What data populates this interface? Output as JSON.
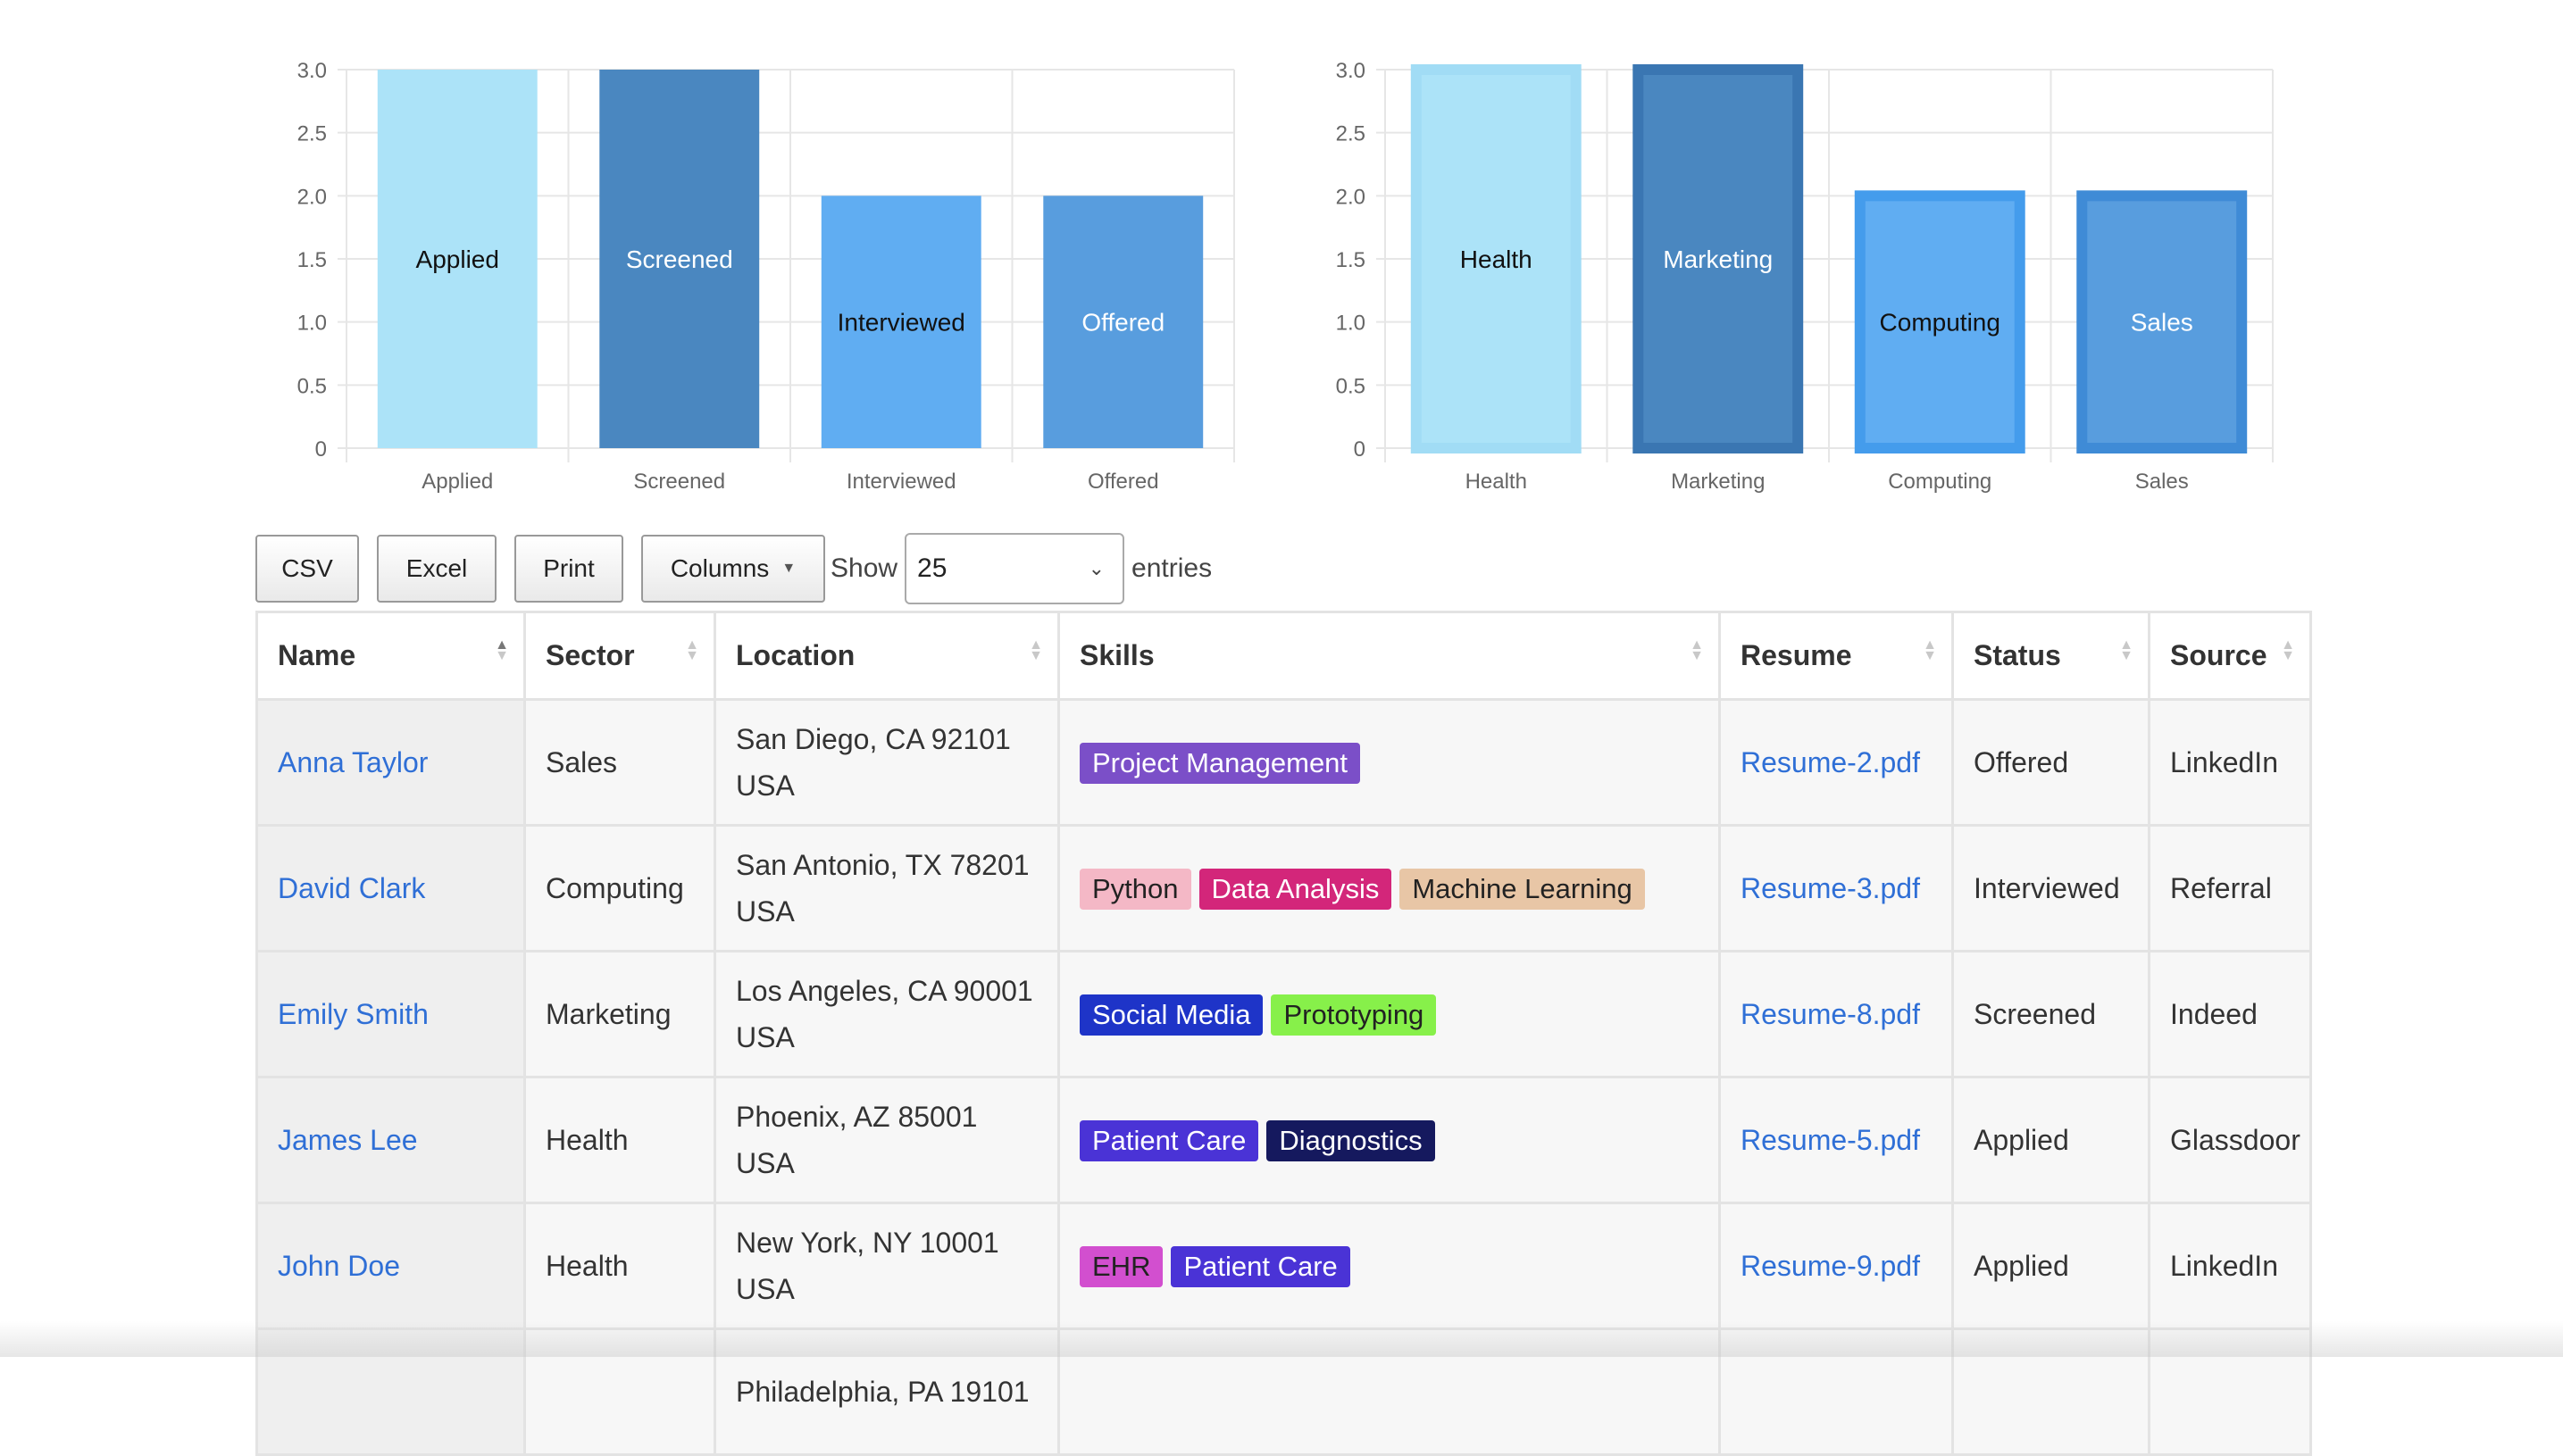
{
  "charts": [
    {
      "type": "bar",
      "categories": [
        "Applied",
        "Screened",
        "Interviewed",
        "Offered"
      ],
      "values": [
        3,
        3,
        2,
        2
      ],
      "bar_labels": [
        "Applied",
        "Screened",
        "Interviewed",
        "Offered"
      ],
      "ylim": [
        0,
        3.0
      ],
      "yticks": [
        "0",
        "0.5",
        "1.0",
        "1.5",
        "2.0",
        "2.5",
        "3.0"
      ],
      "colors": [
        "#ace3f8",
        "#4a87c0",
        "#60adf2",
        "#589dde"
      ],
      "label_colors": [
        "#111111",
        "#ffffff",
        "#111111",
        "#ffffff"
      ],
      "grid": true
    },
    {
      "type": "bar",
      "categories": [
        "Health",
        "Marketing",
        "Computing",
        "Sales"
      ],
      "values": [
        3,
        3,
        2,
        2
      ],
      "bar_labels": [
        "Health",
        "Marketing",
        "Computing",
        "Sales"
      ],
      "ylim": [
        0,
        3.0
      ],
      "yticks": [
        "0",
        "0.5",
        "1.0",
        "1.5",
        "2.0",
        "2.5",
        "3.0"
      ],
      "colors": [
        "#ace3f8",
        "#4a87c0",
        "#60adf2",
        "#589dde"
      ],
      "border_colors": [
        "#a1dcf5",
        "#3a76b2",
        "#449cec",
        "#3f8bd6"
      ],
      "label_colors": [
        "#111111",
        "#ffffff",
        "#111111",
        "#ffffff"
      ],
      "grid": true
    }
  ],
  "chart_data": [
    {
      "type": "bar",
      "categories": [
        "Applied",
        "Screened",
        "Interviewed",
        "Offered"
      ],
      "values": [
        3,
        3,
        2,
        2
      ],
      "ylim": [
        0,
        3.0
      ]
    },
    {
      "type": "bar",
      "categories": [
        "Health",
        "Marketing",
        "Computing",
        "Sales"
      ],
      "values": [
        3,
        3,
        2,
        2
      ],
      "ylim": [
        0,
        3.0
      ]
    }
  ],
  "toolbar": {
    "csv": "CSV",
    "excel": "Excel",
    "print": "Print",
    "columns": "Columns",
    "show": "Show",
    "page_size": "25",
    "entries": "entries"
  },
  "table": {
    "headers": [
      "Name",
      "Sector",
      "Location",
      "Skills",
      "Resume",
      "Status",
      "Source"
    ],
    "rows": [
      {
        "name": "Anna Taylor",
        "sector": "Sales",
        "location1": "San Diego, CA 92101",
        "location2": "USA",
        "skills": [
          {
            "label": "Project Management",
            "bg": "#7b4fc8",
            "fg": "#ffffff"
          }
        ],
        "resume": "Resume-2.pdf",
        "status": "Offered",
        "source": "LinkedIn"
      },
      {
        "name": "David Clark",
        "sector": "Computing",
        "location1": "San Antonio, TX 78201",
        "location2": "USA",
        "skills": [
          {
            "label": "Python",
            "bg": "#f4b8c6",
            "fg": "#222222"
          },
          {
            "label": "Data Analysis",
            "bg": "#d3267a",
            "fg": "#ffffff"
          },
          {
            "label": "Machine Learning",
            "bg": "#e8c6a6",
            "fg": "#222222"
          }
        ],
        "resume": "Resume-3.pdf",
        "status": "Interviewed",
        "source": "Referral"
      },
      {
        "name": "Emily Smith",
        "sector": "Marketing",
        "location1": "Los Angeles, CA 90001",
        "location2": "USA",
        "skills": [
          {
            "label": "Social Media",
            "bg": "#1e34c8",
            "fg": "#ffffff"
          },
          {
            "label": "Prototyping",
            "bg": "#87f04a",
            "fg": "#222222"
          }
        ],
        "resume": "Resume-8.pdf",
        "status": "Screened",
        "source": "Indeed"
      },
      {
        "name": "James Lee",
        "sector": "Health",
        "location1": "Phoenix, AZ 85001",
        "location2": "USA",
        "skills": [
          {
            "label": "Patient Care",
            "bg": "#4a33d6",
            "fg": "#ffffff"
          },
          {
            "label": "Diagnostics",
            "bg": "#15195e",
            "fg": "#ffffff"
          }
        ],
        "resume": "Resume-5.pdf",
        "status": "Applied",
        "source": "Glassdoor"
      },
      {
        "name": "John Doe",
        "sector": "Health",
        "location1": "New York, NY 10001",
        "location2": "USA",
        "skills": [
          {
            "label": "EHR",
            "bg": "#d24fcf",
            "fg": "#222222"
          },
          {
            "label": "Patient Care",
            "bg": "#4a33d6",
            "fg": "#ffffff"
          }
        ],
        "resume": "Resume-9.pdf",
        "status": "Applied",
        "source": "LinkedIn"
      },
      {
        "name": "",
        "sector": "",
        "location1": "Philadelphia, PA 19101",
        "location2": "",
        "skills": [],
        "resume": "",
        "status": "",
        "source": ""
      }
    ]
  }
}
